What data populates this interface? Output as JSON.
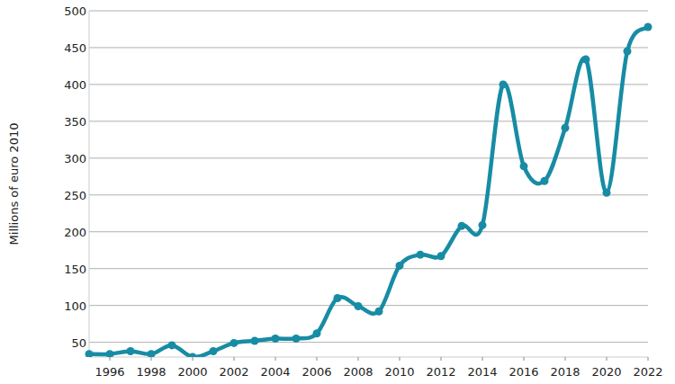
{
  "chart_data": {
    "type": "line",
    "y_label": "Millions of euro 2010",
    "x": [
      1995,
      1996,
      1997,
      1998,
      1999,
      2000,
      2001,
      2002,
      2003,
      2004,
      2005,
      2006,
      2007,
      2008,
      2009,
      2010,
      2011,
      2012,
      2013,
      2014,
      2015,
      2016,
      2017,
      2018,
      2019,
      2020,
      2021,
      2022
    ],
    "values": [
      34,
      34,
      38,
      34,
      46,
      30,
      38,
      49,
      52,
      55,
      55,
      62,
      110,
      99,
      92,
      154,
      169,
      167,
      208,
      209,
      400,
      289,
      269,
      341,
      434,
      253,
      445,
      478
    ],
    "color": "#178ca4",
    "marker": "circle",
    "xlim": [
      1995,
      2022
    ],
    "xticks": [
      1996,
      1998,
      2000,
      2002,
      2004,
      2006,
      2008,
      2010,
      2012,
      2014,
      2016,
      2018,
      2020,
      2022
    ],
    "ylim": [
      30,
      500
    ],
    "yticks": [
      50,
      100,
      150,
      200,
      250,
      300,
      350,
      400,
      450,
      500
    ],
    "grid": true
  }
}
